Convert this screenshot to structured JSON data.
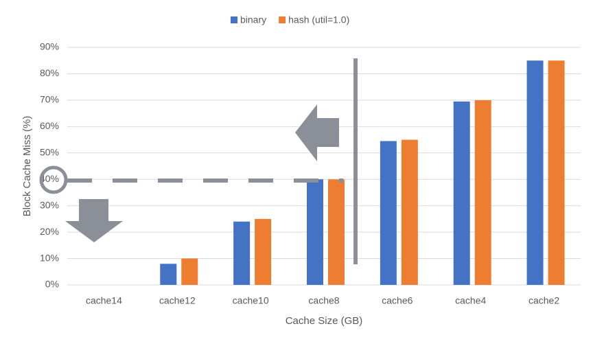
{
  "chart_data": {
    "type": "bar",
    "x_label": "Cache Size (GB)",
    "y_label": "Block Cache Miss (%)",
    "categories": [
      "cache14",
      "cache12",
      "cache10",
      "cache8",
      "cache6",
      "cache4",
      "cache2"
    ],
    "series": [
      {
        "name": "binary",
        "color": "#4472c4",
        "values": [
          0,
          8,
          24,
          40,
          54.5,
          69.5,
          85
        ]
      },
      {
        "name": "hash (util=1.0)",
        "color": "#ed7d31",
        "values": [
          0,
          10,
          25,
          40,
          55,
          70,
          85
        ]
      }
    ],
    "ylim": [
      0,
      90
    ],
    "yticks": [
      {
        "value": 0,
        "label": "0%"
      },
      {
        "value": 10,
        "label": "10%"
      },
      {
        "value": 20,
        "label": "20%"
      },
      {
        "value": 30,
        "label": "30%"
      },
      {
        "value": 40,
        "label": "40%"
      },
      {
        "value": 50,
        "label": "50%"
      },
      {
        "value": 60,
        "label": "60%"
      },
      {
        "value": 70,
        "label": "70%"
      },
      {
        "value": 80,
        "label": "80%"
      },
      {
        "value": 90,
        "label": "90%"
      }
    ],
    "grid": true,
    "legend": "top"
  }
}
